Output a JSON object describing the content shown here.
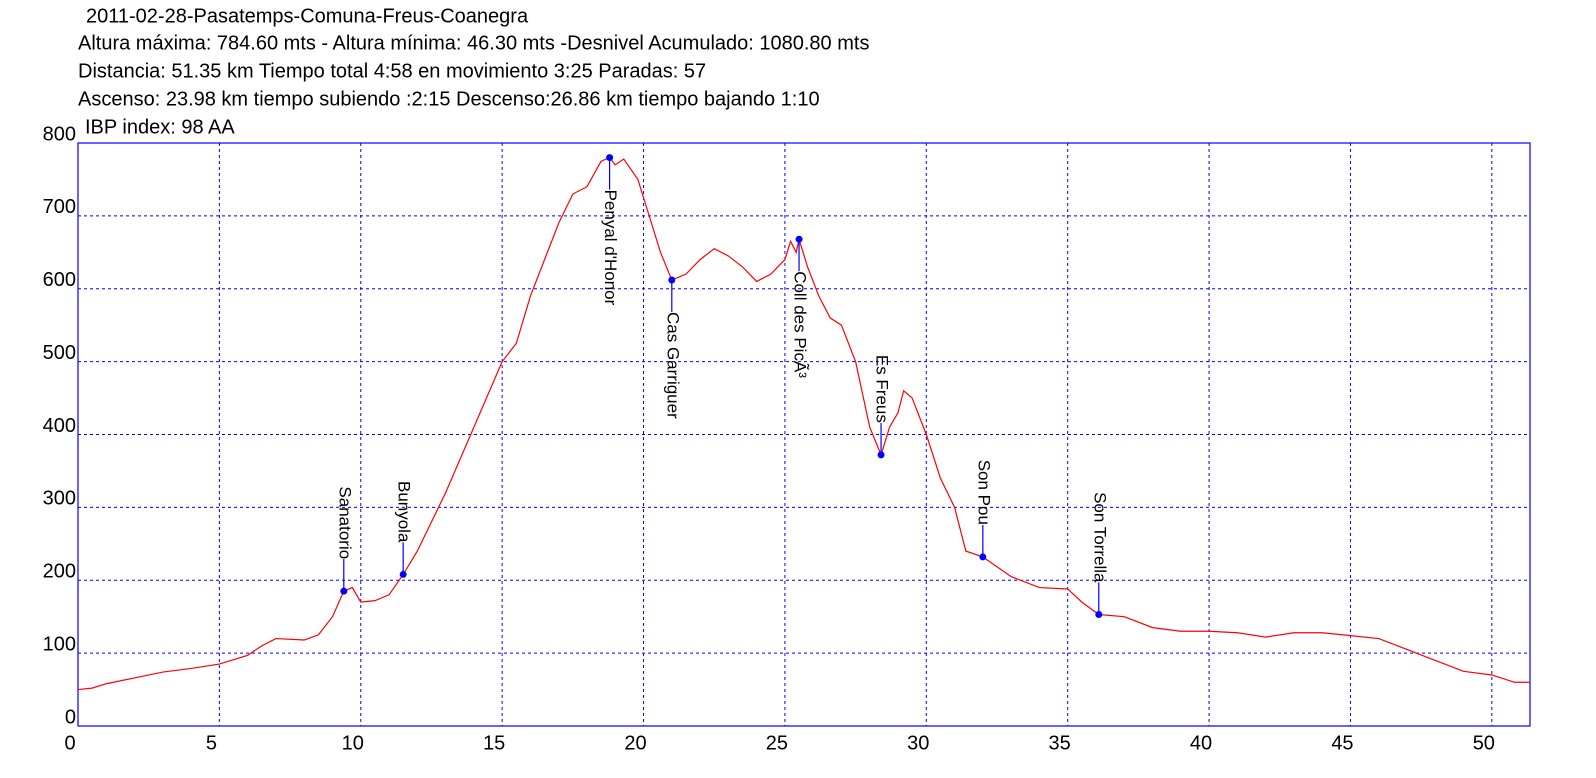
{
  "chart_data": {
    "type": "line",
    "title": "2011-02-28-Pasatemps-Comuna-Freus-Coanegra",
    "subtitle": [
      "Altura máxima: 784.60 mts - Altura mínima: 46.30 mts -Desnivel Acumulado: 1080.80 mts",
      "Distancia: 51.35 km  Tiempo total 4:58  en movimiento 3:25 Paradas: 57",
      "Ascenso: 23.98 km  tiempo subiendo :2:15  Descenso:26.86 km tiempo bajando 1:10",
      "IBP index: 98 AA"
    ],
    "xlim": [
      0,
      51.35
    ],
    "ylim": [
      0,
      800
    ],
    "xticks": [
      0,
      5,
      10,
      15,
      20,
      25,
      30,
      35,
      40,
      45,
      50
    ],
    "yticks": [
      0,
      100,
      200,
      300,
      400,
      500,
      600,
      700,
      800
    ],
    "grid": true,
    "series": [
      {
        "color": "#ff0000",
        "x": [
          0,
          0.5,
          1,
          2,
          3,
          4,
          5,
          6,
          6.5,
          7,
          8,
          8.5,
          9,
          9.4,
          9.7,
          10,
          10.5,
          11,
          11.5,
          12,
          13,
          14,
          15,
          15.5,
          16,
          16.5,
          17,
          17.5,
          18,
          18.5,
          18.8,
          19,
          19.3,
          19.8,
          20.2,
          20.6,
          21,
          21.5,
          22,
          22.5,
          23,
          23.5,
          24,
          24.5,
          25,
          25.2,
          25.4,
          25.5,
          25.8,
          26.2,
          26.6,
          27,
          27.5,
          28,
          28.4,
          28.7,
          29,
          29.2,
          29.5,
          30,
          30.5,
          31,
          31.4,
          32,
          33,
          34,
          35,
          35.5,
          36.1,
          37,
          38,
          39,
          40,
          41,
          42,
          43,
          44,
          45,
          46,
          47,
          48,
          49,
          50,
          50.8,
          51.35
        ],
        "values": [
          50,
          52,
          58,
          66,
          74,
          79,
          85,
          97,
          110,
          120,
          118,
          125,
          150,
          185,
          190,
          170,
          172,
          180,
          208,
          240,
          320,
          410,
          500,
          525,
          590,
          640,
          690,
          730,
          740,
          775,
          780,
          770,
          778,
          750,
          700,
          650,
          612,
          620,
          640,
          655,
          645,
          630,
          610,
          620,
          640,
          665,
          650,
          668,
          630,
          590,
          560,
          550,
          500,
          410,
          372,
          410,
          430,
          460,
          450,
          400,
          340,
          300,
          240,
          232,
          205,
          190,
          188,
          170,
          153,
          150,
          135,
          130,
          130,
          128,
          122,
          128,
          128,
          124,
          120,
          105,
          90,
          75,
          70,
          60,
          60
        ]
      }
    ],
    "annotations": [
      {
        "label": "Sanatorio",
        "x": 9.4,
        "y": 185
      },
      {
        "label": "Bunyola",
        "x": 11.5,
        "y": 208
      },
      {
        "label": "Penyal d'Honor",
        "x": 18.8,
        "y": 780
      },
      {
        "label": "Cas Garriguer",
        "x": 21.0,
        "y": 612
      },
      {
        "label": "Coll des PicÃ³",
        "x": 25.5,
        "y": 668
      },
      {
        "label": "Es Freus",
        "x": 28.4,
        "y": 372
      },
      {
        "label": "Son Pou",
        "x": 32.0,
        "y": 232
      },
      {
        "label": "Son Torrella",
        "x": 36.1,
        "y": 153
      }
    ]
  }
}
